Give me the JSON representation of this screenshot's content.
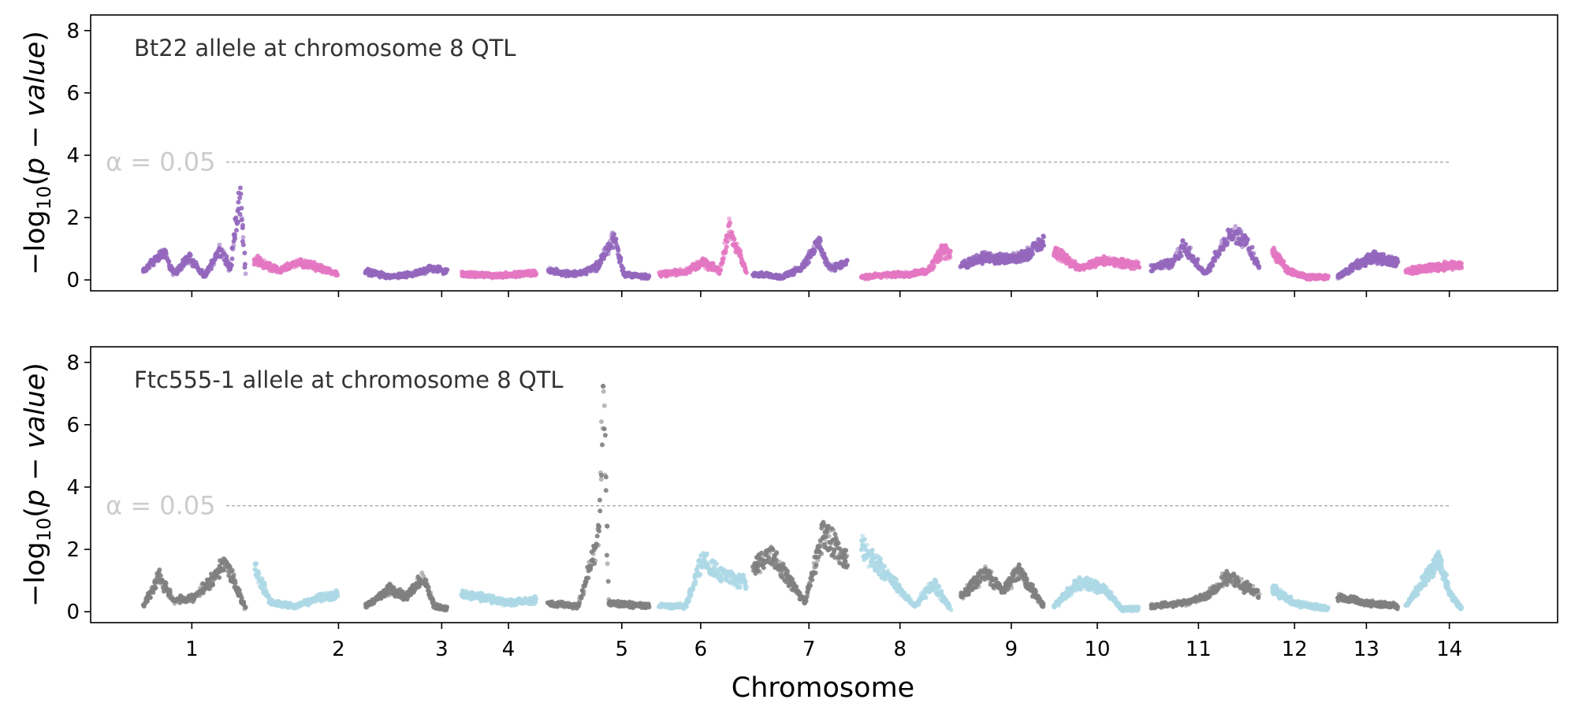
{
  "chart_data": {
    "type": "scatter",
    "xlabel": "Chromosome",
    "ylabel": "−log10(p − value)",
    "ylim": [
      -0.35,
      8.5
    ],
    "yticks": [
      0,
      2,
      4,
      6,
      8
    ],
    "chromosomes": [
      {
        "label": "1",
        "tick": 1.0,
        "start": 0.52,
        "end": 1.53
      },
      {
        "label": "2",
        "tick": 2.45,
        "start": 1.62,
        "end": 2.44
      },
      {
        "label": "3",
        "tick": 3.47,
        "start": 2.72,
        "end": 3.52
      },
      {
        "label": "4",
        "tick": 4.13,
        "start": 3.67,
        "end": 4.4
      },
      {
        "label": "5",
        "tick": 5.25,
        "start": 4.52,
        "end": 5.52
      },
      {
        "label": "6",
        "tick": 6.03,
        "start": 5.62,
        "end": 6.48
      },
      {
        "label": "7",
        "tick": 7.1,
        "start": 6.55,
        "end": 7.48
      },
      {
        "label": "8",
        "tick": 8.0,
        "start": 7.62,
        "end": 8.5
      },
      {
        "label": "9",
        "tick": 9.1,
        "start": 8.6,
        "end": 9.42
      },
      {
        "label": "10",
        "tick": 9.95,
        "start": 9.52,
        "end": 10.36
      },
      {
        "label": "11",
        "tick": 10.95,
        "start": 10.48,
        "end": 11.55
      },
      {
        "label": "12",
        "tick": 11.9,
        "start": 11.68,
        "end": 12.23
      },
      {
        "label": "13",
        "tick": 12.61,
        "start": 12.33,
        "end": 12.92
      },
      {
        "label": "14",
        "tick": 13.43,
        "start": 13.0,
        "end": 13.55
      }
    ],
    "panels": [
      {
        "title": "Bt22 allele at chromosome 8 QTL",
        "alpha_label": "α = 0.05",
        "threshold": 3.78,
        "colors": [
          "#9467bd",
          "#e377c2"
        ],
        "profiles": [
          [
            [
              0.0,
              0.3
            ],
            [
              0.2,
              1.0
            ],
            [
              0.3,
              0.2
            ],
            [
              0.45,
              0.8
            ],
            [
              0.6,
              0.1
            ],
            [
              0.75,
              1.1
            ],
            [
              0.85,
              0.4
            ],
            [
              0.95,
              3.0
            ],
            [
              1.0,
              0.2
            ]
          ],
          [
            [
              0.0,
              0.7
            ],
            [
              0.3,
              0.3
            ],
            [
              0.5,
              0.6
            ],
            [
              0.7,
              0.5
            ],
            [
              1.0,
              0.2
            ]
          ],
          [
            [
              0.0,
              0.3
            ],
            [
              0.3,
              0.1
            ],
            [
              0.6,
              0.2
            ],
            [
              0.8,
              0.4
            ],
            [
              1.0,
              0.3
            ]
          ],
          [
            [
              0.0,
              0.2
            ],
            [
              0.5,
              0.15
            ],
            [
              1.0,
              0.25
            ]
          ],
          [
            [
              0.0,
              0.3
            ],
            [
              0.3,
              0.2
            ],
            [
              0.5,
              0.5
            ],
            [
              0.65,
              1.5
            ],
            [
              0.75,
              0.2
            ],
            [
              1.0,
              0.1
            ]
          ],
          [
            [
              0.0,
              0.2
            ],
            [
              0.3,
              0.3
            ],
            [
              0.5,
              0.6
            ],
            [
              0.7,
              0.3
            ],
            [
              0.8,
              1.8
            ],
            [
              1.0,
              0.3
            ]
          ],
          [
            [
              0.0,
              0.2
            ],
            [
              0.3,
              0.1
            ],
            [
              0.5,
              0.4
            ],
            [
              0.7,
              1.3
            ],
            [
              0.8,
              0.4
            ],
            [
              1.0,
              0.6
            ]
          ],
          [
            [
              0.0,
              0.1
            ],
            [
              0.5,
              0.2
            ],
            [
              0.75,
              0.3
            ],
            [
              0.9,
              1.0
            ],
            [
              1.0,
              0.9
            ]
          ],
          [
            [
              0.0,
              0.5
            ],
            [
              0.3,
              0.8
            ],
            [
              0.6,
              0.7
            ],
            [
              0.8,
              0.9
            ],
            [
              1.0,
              1.3
            ]
          ],
          [
            [
              0.0,
              1.0
            ],
            [
              0.3,
              0.4
            ],
            [
              0.6,
              0.7
            ],
            [
              1.0,
              0.5
            ]
          ],
          [
            [
              0.0,
              0.4
            ],
            [
              0.2,
              0.6
            ],
            [
              0.3,
              1.2
            ],
            [
              0.5,
              0.2
            ],
            [
              0.75,
              1.7
            ],
            [
              0.9,
              1.2
            ],
            [
              1.0,
              0.4
            ]
          ],
          [
            [
              0.0,
              1.0
            ],
            [
              0.3,
              0.3
            ],
            [
              0.6,
              0.1
            ],
            [
              1.0,
              0.1
            ]
          ],
          [
            [
              0.0,
              0.1
            ],
            [
              0.3,
              0.5
            ],
            [
              0.6,
              0.8
            ],
            [
              1.0,
              0.6
            ]
          ],
          [
            [
              0.0,
              0.3
            ],
            [
              0.4,
              0.4
            ],
            [
              0.8,
              0.5
            ],
            [
              1.0,
              0.5
            ]
          ]
        ]
      },
      {
        "title": "Ftc555-1 allele at chromosome 8 QTL",
        "alpha_label": "α = 0.05",
        "threshold": 3.4,
        "colors": [
          "#7f7f7f",
          "#add8e6"
        ],
        "profiles": [
          [
            [
              0.0,
              0.2
            ],
            [
              0.15,
              1.2
            ],
            [
              0.3,
              0.4
            ],
            [
              0.5,
              0.5
            ],
            [
              0.65,
              1.0
            ],
            [
              0.8,
              1.8
            ],
            [
              1.0,
              0.1
            ]
          ],
          [
            [
              0.0,
              1.5
            ],
            [
              0.2,
              0.3
            ],
            [
              0.5,
              0.2
            ],
            [
              0.8,
              0.5
            ],
            [
              1.0,
              0.6
            ]
          ],
          [
            [
              0.0,
              0.2
            ],
            [
              0.3,
              0.8
            ],
            [
              0.5,
              0.5
            ],
            [
              0.7,
              1.2
            ],
            [
              0.85,
              0.2
            ],
            [
              1.0,
              0.1
            ]
          ],
          [
            [
              0.0,
              0.6
            ],
            [
              0.3,
              0.5
            ],
            [
              0.6,
              0.3
            ],
            [
              1.0,
              0.4
            ]
          ],
          [
            [
              0.0,
              0.3
            ],
            [
              0.3,
              0.2
            ],
            [
              0.5,
              2.5
            ],
            [
              0.55,
              7.8
            ],
            [
              0.6,
              0.3
            ],
            [
              1.0,
              0.2
            ]
          ],
          [
            [
              0.0,
              0.2
            ],
            [
              0.3,
              0.2
            ],
            [
              0.5,
              1.8
            ],
            [
              0.7,
              1.3
            ],
            [
              1.0,
              1.0
            ]
          ],
          [
            [
              0.0,
              1.5
            ],
            [
              0.2,
              2.0
            ],
            [
              0.4,
              1.0
            ],
            [
              0.55,
              0.3
            ],
            [
              0.75,
              2.8
            ],
            [
              1.0,
              1.8
            ]
          ],
          [
            [
              0.0,
              2.3
            ],
            [
              0.3,
              1.2
            ],
            [
              0.6,
              0.2
            ],
            [
              0.8,
              1.0
            ],
            [
              1.0,
              0.1
            ]
          ],
          [
            [
              0.0,
              0.5
            ],
            [
              0.3,
              1.4
            ],
            [
              0.5,
              0.7
            ],
            [
              0.7,
              1.4
            ],
            [
              1.0,
              0.2
            ]
          ],
          [
            [
              0.0,
              0.2
            ],
            [
              0.3,
              1.0
            ],
            [
              0.6,
              0.8
            ],
            [
              0.8,
              0.1
            ],
            [
              1.0,
              0.1
            ]
          ],
          [
            [
              0.0,
              0.2
            ],
            [
              0.3,
              0.3
            ],
            [
              0.5,
              0.5
            ],
            [
              0.7,
              1.2
            ],
            [
              1.0,
              0.6
            ]
          ],
          [
            [
              0.0,
              0.8
            ],
            [
              0.4,
              0.3
            ],
            [
              0.7,
              0.2
            ],
            [
              1.0,
              0.1
            ]
          ],
          [
            [
              0.0,
              0.5
            ],
            [
              0.5,
              0.3
            ],
            [
              1.0,
              0.2
            ]
          ],
          [
            [
              0.0,
              0.2
            ],
            [
              0.3,
              1.0
            ],
            [
              0.6,
              1.8
            ],
            [
              0.8,
              0.6
            ],
            [
              1.0,
              0.1
            ]
          ]
        ]
      }
    ]
  }
}
